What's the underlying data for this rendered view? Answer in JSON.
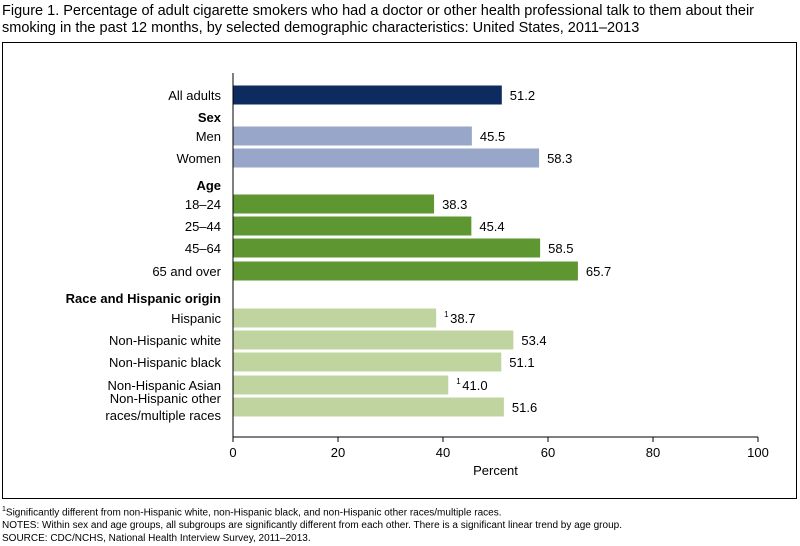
{
  "title": "Figure 1. Percentage of adult cigarette smokers who had a doctor or other health professional talk to them about their smoking in the past 12 months, by selected demographic characteristics: United States, 2011–2013",
  "notes": {
    "footnote_mark": "1",
    "footnote": "Significantly different from non-Hispanic white, non-Hispanic black, and non-Hispanic other races/multiple races.",
    "notes_line": "NOTES: Within sex and age groups, all subgroups are significantly different from each other. There is a significant linear trend by age group.",
    "source": "SOURCE: CDC/NCHS, National Health Interview Survey, 2011–2013."
  },
  "chart_data": {
    "type": "bar",
    "orientation": "horizontal",
    "xlabel": "Percent",
    "xlim": [
      0,
      100
    ],
    "xticks": [
      "0",
      "20",
      "40",
      "60",
      "80",
      "100"
    ],
    "grid": false,
    "group_headers": [
      "Sex",
      "Age",
      "Race and Hispanic origin"
    ],
    "colors": {
      "overall": "#0d2b5e",
      "sex": "#97a6c9",
      "age": "#5e9632",
      "race": "#bfd49e"
    },
    "bars": [
      {
        "label": "All adults",
        "value": 51.2,
        "value_label": "51.2",
        "group": "overall"
      },
      {
        "label": "Men",
        "value": 45.5,
        "value_label": "45.5",
        "group": "sex"
      },
      {
        "label": "Women",
        "value": 58.3,
        "value_label": "58.3",
        "group": "sex"
      },
      {
        "label": "18–24",
        "value": 38.3,
        "value_label": "38.3",
        "group": "age"
      },
      {
        "label": "25–44",
        "value": 45.4,
        "value_label": "45.4",
        "group": "age"
      },
      {
        "label": "45–64",
        "value": 58.5,
        "value_label": "58.5",
        "group": "age"
      },
      {
        "label": "65 and over",
        "value": 65.7,
        "value_label": "65.7",
        "group": "age"
      },
      {
        "label": "Hispanic",
        "value": 38.7,
        "value_label": "38.7",
        "footnote": "1",
        "group": "race"
      },
      {
        "label": "Non-Hispanic white",
        "value": 53.4,
        "value_label": "53.4",
        "group": "race"
      },
      {
        "label": "Non-Hispanic black",
        "value": 51.1,
        "value_label": "51.1",
        "group": "race"
      },
      {
        "label": "Non-Hispanic Asian",
        "value": 41.0,
        "value_label": "41.0",
        "footnote": "1",
        "group": "race"
      },
      {
        "label": [
          "Non-Hispanic other",
          "races/multiple races"
        ],
        "value": 51.6,
        "value_label": "51.6",
        "group": "race"
      }
    ]
  }
}
